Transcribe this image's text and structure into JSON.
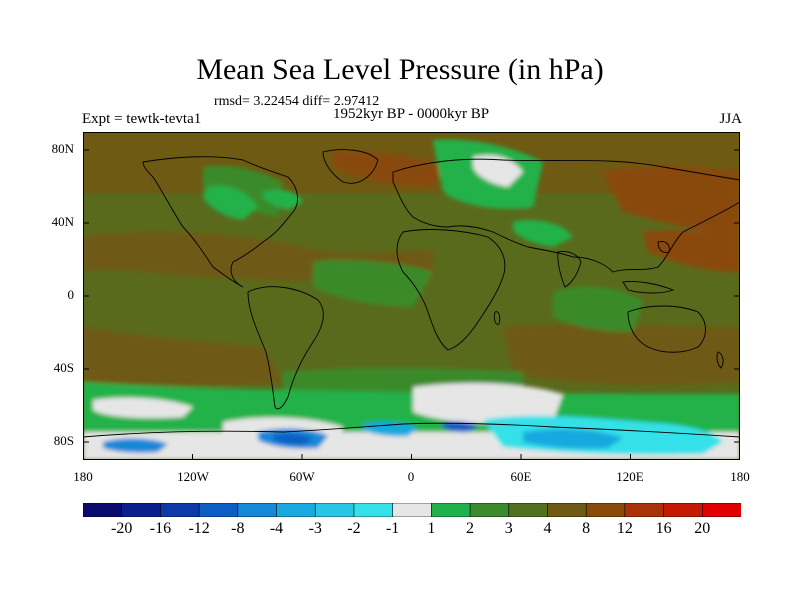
{
  "title": "Mean Sea Level Pressure (in hPa)",
  "stats": "rmsd= 3.22454  diff= 2.97412",
  "expt": "Expt = tewtk-tevta1",
  "period": "1952kyr BP - 0000kyr BP",
  "season": "JJA",
  "axes": {
    "lat_labels": [
      "80N",
      "40N",
      "0",
      "40S",
      "80S"
    ],
    "lon_labels": [
      "180",
      "120W",
      "60W",
      "0",
      "60E",
      "120E",
      "180"
    ]
  },
  "colorbar": {
    "labels": [
      "-20",
      "-16",
      "-12",
      "-8",
      "-4",
      "-3",
      "-2",
      "-1",
      "1",
      "2",
      "3",
      "4",
      "8",
      "12",
      "16",
      "20"
    ],
    "colors": [
      "#0a0a6e",
      "#0b1e8c",
      "#0c3aa8",
      "#0b5ec4",
      "#1688d8",
      "#19a9df",
      "#28c6e6",
      "#34e1e8",
      "#e6e6e6",
      "#20b24a",
      "#3b8a2c",
      "#52701f",
      "#6e5a12",
      "#894a0c",
      "#a83308",
      "#c41a04",
      "#e00000"
    ]
  },
  "colors": {
    "background": "#ffffff",
    "map_base": "#5a6a1c",
    "coastline": "#000000"
  }
}
